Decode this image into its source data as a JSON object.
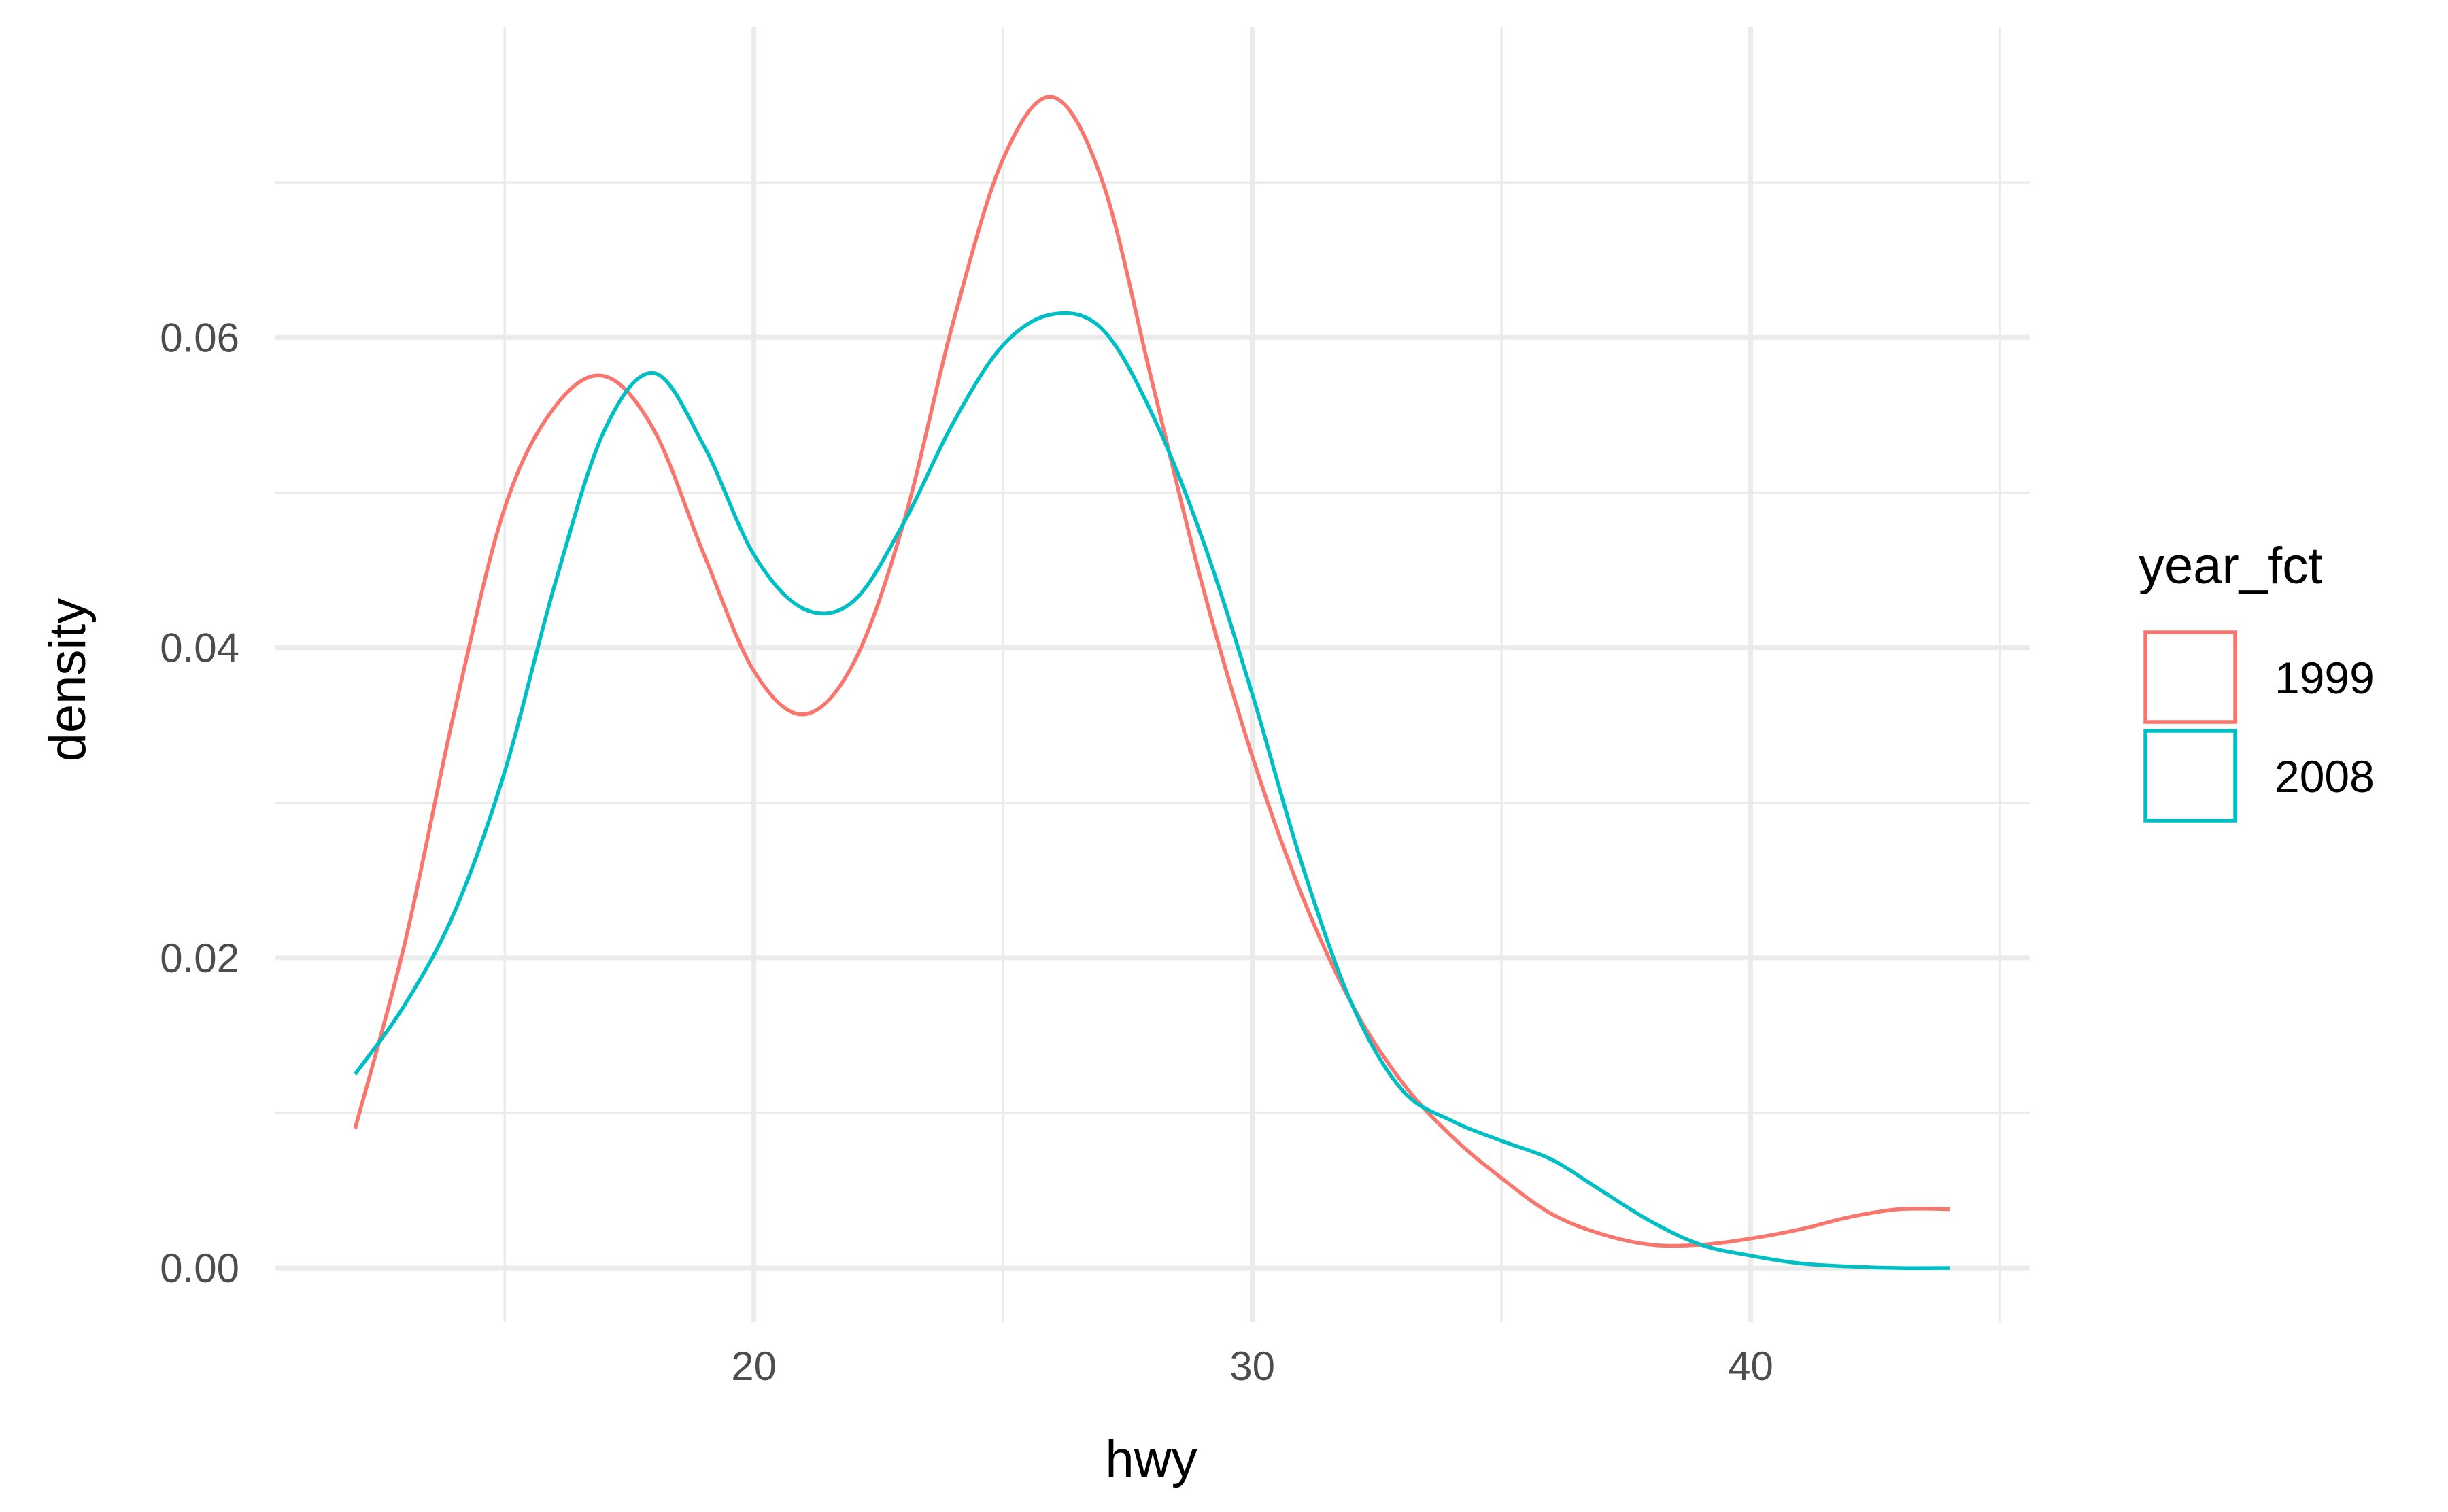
{
  "chart_data": {
    "type": "line",
    "xlabel": "hwy",
    "ylabel": "density",
    "xlim": [
      10.4,
      45.6
    ],
    "ylim": [
      -0.0035,
      0.08
    ],
    "x_ticks": [
      20,
      30,
      40
    ],
    "x_tick_labels": [
      "20",
      "30",
      "40"
    ],
    "x_minor_ticks": [
      15,
      25,
      35,
      45
    ],
    "y_ticks": [
      0.0,
      0.02,
      0.04,
      0.06
    ],
    "y_tick_labels": [
      "0.00",
      "0.02",
      "0.04",
      "0.06"
    ],
    "y_minor_ticks": [
      0.01,
      0.03,
      0.05,
      0.07
    ],
    "grid": true,
    "legend": {
      "title": "year_fct",
      "position": "right"
    },
    "series": [
      {
        "name": "1999",
        "color": "#F8766D",
        "x": [
          12,
          13,
          14,
          15,
          16,
          17,
          18,
          19,
          20,
          21,
          22,
          23,
          24,
          25,
          26,
          27,
          28,
          29,
          30,
          31,
          32,
          33,
          34,
          35,
          36,
          37,
          38,
          39,
          40,
          41,
          42,
          43,
          44
        ],
        "y": [
          0.009,
          0.021,
          0.036,
          0.049,
          0.0555,
          0.0575,
          0.054,
          0.046,
          0.0385,
          0.0357,
          0.039,
          0.048,
          0.061,
          0.0715,
          0.0755,
          0.07,
          0.057,
          0.044,
          0.033,
          0.024,
          0.017,
          0.012,
          0.0085,
          0.0058,
          0.0035,
          0.0022,
          0.0015,
          0.0015,
          0.0019,
          0.0025,
          0.0033,
          0.0038,
          0.0038
        ]
      },
      {
        "name": "2008",
        "color": "#00BFC4",
        "x": [
          12,
          13,
          14,
          15,
          16,
          17,
          18,
          19,
          20,
          21,
          22,
          23,
          24,
          25,
          26,
          27,
          28,
          29,
          30,
          31,
          32,
          33,
          34,
          35,
          36,
          37,
          38,
          39,
          40,
          41,
          42,
          43,
          44
        ],
        "y": [
          0.0125,
          0.017,
          0.023,
          0.032,
          0.044,
          0.054,
          0.0577,
          0.053,
          0.046,
          0.0425,
          0.043,
          0.048,
          0.0545,
          0.0595,
          0.0615,
          0.0605,
          0.055,
          0.047,
          0.037,
          0.026,
          0.017,
          0.0115,
          0.0095,
          0.0082,
          0.007,
          0.005,
          0.003,
          0.0015,
          0.0008,
          0.0003,
          0.0001,
          0.0,
          0.0
        ]
      }
    ]
  }
}
